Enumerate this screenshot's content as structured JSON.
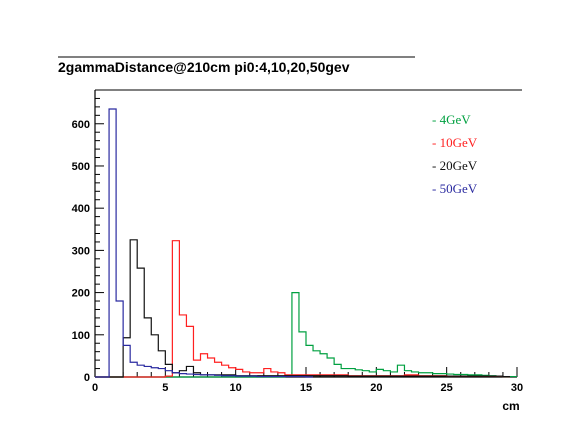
{
  "chart_data": {
    "type": "histogram",
    "title": "2gammaDistance@210cm pi0:4,10,20,50gev",
    "xlabel": "cm",
    "ylabel": "",
    "xlim": [
      0,
      30
    ],
    "ylim": [
      0,
      680
    ],
    "xticks": [
      "0",
      "5",
      "10",
      "15",
      "20",
      "25",
      "30"
    ],
    "yticks": [
      "0",
      "100",
      "200",
      "300",
      "400",
      "500",
      "600"
    ],
    "bin_width": 0.5,
    "grid": false,
    "legend_position": "top-right",
    "series": [
      {
        "name": "4GeV",
        "legend_label": "- 4GeV",
        "color": "#00a040",
        "dashed": false,
        "bins": [
          [
            0,
            0
          ],
          [
            13.5,
            2
          ],
          [
            14,
            200
          ],
          [
            14.5,
            107
          ],
          [
            15,
            75
          ],
          [
            15.5,
            62
          ],
          [
            16,
            55
          ],
          [
            16.5,
            45
          ],
          [
            17,
            30
          ],
          [
            17.5,
            20
          ],
          [
            18,
            20
          ],
          [
            18.5,
            17
          ],
          [
            19,
            15
          ],
          [
            19.5,
            12
          ],
          [
            20,
            18
          ],
          [
            20.5,
            15
          ],
          [
            21,
            12
          ],
          [
            21.5,
            28
          ],
          [
            22,
            15
          ],
          [
            22.5,
            12
          ],
          [
            23,
            10
          ],
          [
            23.5,
            10
          ],
          [
            24,
            8
          ],
          [
            24.5,
            8
          ],
          [
            25,
            7
          ],
          [
            25.5,
            6
          ],
          [
            26,
            6
          ],
          [
            26.5,
            5
          ],
          [
            27,
            5
          ],
          [
            27.5,
            4
          ],
          [
            28,
            3
          ],
          [
            28.5,
            2
          ],
          [
            29,
            1
          ],
          [
            29.5,
            1
          ]
        ]
      },
      {
        "name": "10GeV",
        "legend_label": "- 10GeV",
        "color": "#ff2020",
        "dashed": false,
        "bins": [
          [
            0,
            0
          ],
          [
            5,
            2
          ],
          [
            5.5,
            323
          ],
          [
            6,
            147
          ],
          [
            6.5,
            120
          ],
          [
            7,
            40
          ],
          [
            7.5,
            55
          ],
          [
            8,
            45
          ],
          [
            8.5,
            35
          ],
          [
            9,
            28
          ],
          [
            9.5,
            22
          ],
          [
            10,
            18
          ],
          [
            10.5,
            12
          ],
          [
            11,
            10
          ],
          [
            11.5,
            10
          ],
          [
            12,
            20
          ],
          [
            12.5,
            12
          ],
          [
            13,
            10
          ],
          [
            13.5,
            5
          ],
          [
            14,
            5
          ],
          [
            15,
            5
          ],
          [
            16,
            5
          ],
          [
            17,
            5
          ],
          [
            18,
            3
          ],
          [
            19,
            3
          ],
          [
            20,
            3
          ],
          [
            21,
            3
          ],
          [
            22,
            5
          ],
          [
            23,
            3
          ],
          [
            24,
            3
          ],
          [
            25,
            2
          ],
          [
            26,
            2
          ],
          [
            27,
            2
          ],
          [
            28,
            2
          ],
          [
            29,
            1
          ]
        ]
      },
      {
        "name": "20GeV",
        "legend_label": "- 20GeV",
        "color": "#111111",
        "dashed": false,
        "bins": [
          [
            0,
            0
          ],
          [
            2,
            93
          ],
          [
            2.5,
            325
          ],
          [
            3,
            258
          ],
          [
            3.5,
            140
          ],
          [
            4,
            100
          ],
          [
            4.5,
            62
          ],
          [
            5,
            30
          ],
          [
            5.5,
            10
          ],
          [
            6,
            15
          ],
          [
            6.5,
            25
          ],
          [
            7,
            10
          ],
          [
            7.5,
            5
          ],
          [
            8,
            5
          ],
          [
            8.5,
            5
          ],
          [
            9,
            5
          ],
          [
            10,
            3
          ],
          [
            11,
            3
          ],
          [
            12,
            3
          ],
          [
            13,
            3
          ],
          [
            14,
            3
          ],
          [
            15,
            3
          ],
          [
            16,
            3
          ],
          [
            17,
            3
          ],
          [
            18,
            2
          ],
          [
            19,
            2
          ],
          [
            20,
            2
          ],
          [
            21,
            2
          ],
          [
            22,
            2
          ],
          [
            23,
            2
          ],
          [
            24,
            2
          ],
          [
            25,
            2
          ],
          [
            26,
            2
          ],
          [
            27,
            2
          ],
          [
            28,
            2
          ],
          [
            29,
            1
          ]
        ]
      },
      {
        "name": "50GeV",
        "legend_label": "- 50GeV",
        "color": "#2a2aa0",
        "dashed": false,
        "bins": [
          [
            0,
            0
          ],
          [
            1,
            635
          ],
          [
            1.5,
            180
          ],
          [
            2,
            75
          ],
          [
            2.5,
            35
          ],
          [
            3,
            28
          ],
          [
            3.5,
            25
          ],
          [
            4,
            22
          ],
          [
            4.5,
            20
          ],
          [
            5,
            15
          ],
          [
            5.5,
            10
          ],
          [
            6,
            8
          ],
          [
            6.5,
            7
          ],
          [
            7,
            6
          ],
          [
            7.5,
            5
          ],
          [
            8,
            5
          ],
          [
            8.5,
            4
          ],
          [
            9,
            3
          ],
          [
            9.5,
            3
          ],
          [
            10,
            2
          ],
          [
            10.5,
            2
          ],
          [
            11,
            2
          ],
          [
            11.5,
            1
          ],
          [
            12,
            1
          ],
          [
            13,
            1
          ],
          [
            14,
            1
          ],
          [
            15,
            0
          ]
        ]
      }
    ]
  }
}
